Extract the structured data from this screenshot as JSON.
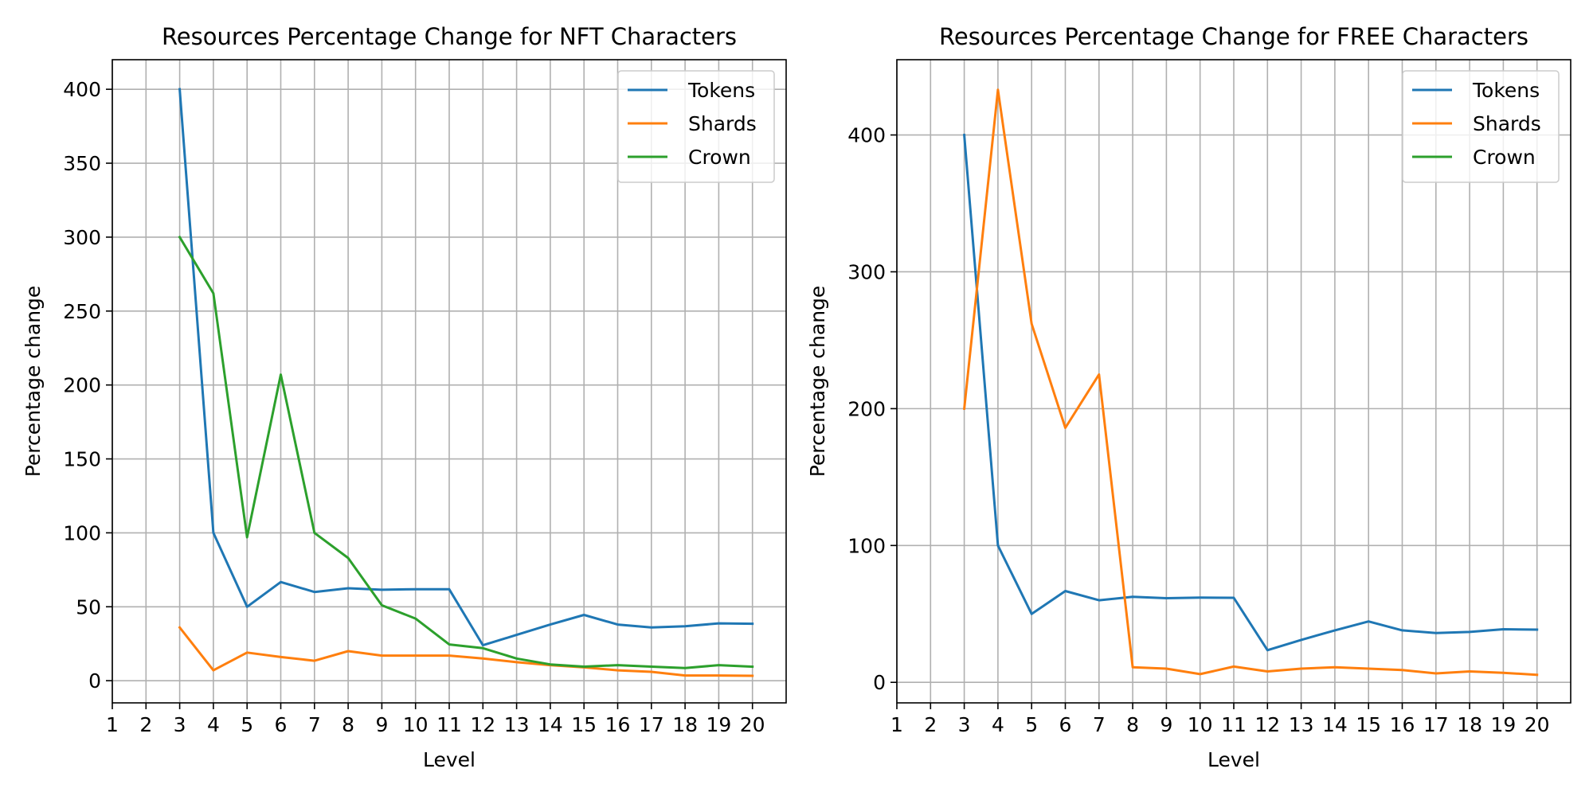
{
  "chart_data": [
    {
      "type": "line",
      "title": "Resources Percentage Change for NFT Characters",
      "xlabel": "Level",
      "ylabel": "Percentage change",
      "xlim": [
        1,
        21
      ],
      "ylim": [
        -15,
        420
      ],
      "xticks": [
        1,
        2,
        3,
        4,
        5,
        6,
        7,
        8,
        9,
        10,
        11,
        12,
        13,
        14,
        15,
        16,
        17,
        18,
        19,
        20
      ],
      "yticks": [
        0,
        50,
        100,
        150,
        200,
        250,
        300,
        350,
        400
      ],
      "grid": true,
      "legend": "top-right",
      "series": [
        {
          "name": "Tokens",
          "color": "#1f77b4",
          "x": [
            3,
            4,
            5,
            6,
            7,
            8,
            9,
            10,
            11,
            12,
            13,
            14,
            15,
            16,
            17,
            18,
            19,
            20
          ],
          "y": [
            400,
            100,
            50,
            66.7,
            60,
            62.5,
            61.5,
            61.9,
            61.8,
            24,
            31,
            38,
            44.5,
            38,
            36,
            36.8,
            38.8,
            38.5
          ]
        },
        {
          "name": "Shards",
          "color": "#ff7f0e",
          "x": [
            3,
            4,
            5,
            6,
            7,
            8,
            9,
            10,
            11,
            12,
            13,
            14,
            15,
            16,
            17,
            18,
            19,
            20
          ],
          "y": [
            36,
            7,
            19,
            16,
            13.5,
            20,
            17,
            17,
            17,
            15,
            12.5,
            10.5,
            9,
            7,
            6,
            3.5,
            3.5,
            3.3
          ]
        },
        {
          "name": "Crown",
          "color": "#2ca02c",
          "x": [
            3,
            4,
            5,
            6,
            7,
            8,
            9,
            10,
            11,
            12,
            13,
            14,
            15,
            16,
            17,
            18,
            19,
            20
          ],
          "y": [
            300,
            262,
            97,
            207,
            100,
            83,
            51,
            42,
            24.5,
            22,
            15,
            11,
            9.5,
            10.5,
            9.5,
            8.5,
            10.5,
            9.5
          ]
        }
      ]
    },
    {
      "type": "line",
      "title": "Resources Percentage Change for FREE Characters",
      "xlabel": "Level",
      "ylabel": "Percentage change",
      "xlim": [
        1,
        21
      ],
      "ylim": [
        -15,
        455
      ],
      "xticks": [
        1,
        2,
        3,
        4,
        5,
        6,
        7,
        8,
        9,
        10,
        11,
        12,
        13,
        14,
        15,
        16,
        17,
        18,
        19,
        20
      ],
      "yticks": [
        0,
        100,
        200,
        300,
        400
      ],
      "grid": true,
      "legend": "top-right",
      "series": [
        {
          "name": "Tokens",
          "color": "#1f77b4",
          "x": [
            3,
            4,
            5,
            6,
            7,
            8,
            9,
            10,
            11,
            12,
            13,
            14,
            15,
            16,
            17,
            18,
            19,
            20
          ],
          "y": [
            400,
            100,
            50,
            66.7,
            60,
            62.5,
            61.5,
            61.9,
            61.8,
            23.5,
            31,
            38,
            44.5,
            38,
            36,
            36.8,
            38.8,
            38.5
          ]
        },
        {
          "name": "Shards",
          "color": "#ff7f0e",
          "x": [
            3,
            4,
            5,
            6,
            7,
            8,
            9,
            10,
            11,
            12,
            13,
            14,
            15,
            16,
            17,
            18,
            19,
            20
          ],
          "y": [
            200,
            433,
            262,
            186,
            225,
            11,
            10,
            6,
            11.5,
            8,
            10,
            11,
            10,
            9,
            6.5,
            8,
            7,
            5.5
          ]
        },
        {
          "name": "Crown",
          "color": "#2ca02c",
          "x": [],
          "y": []
        }
      ]
    }
  ]
}
